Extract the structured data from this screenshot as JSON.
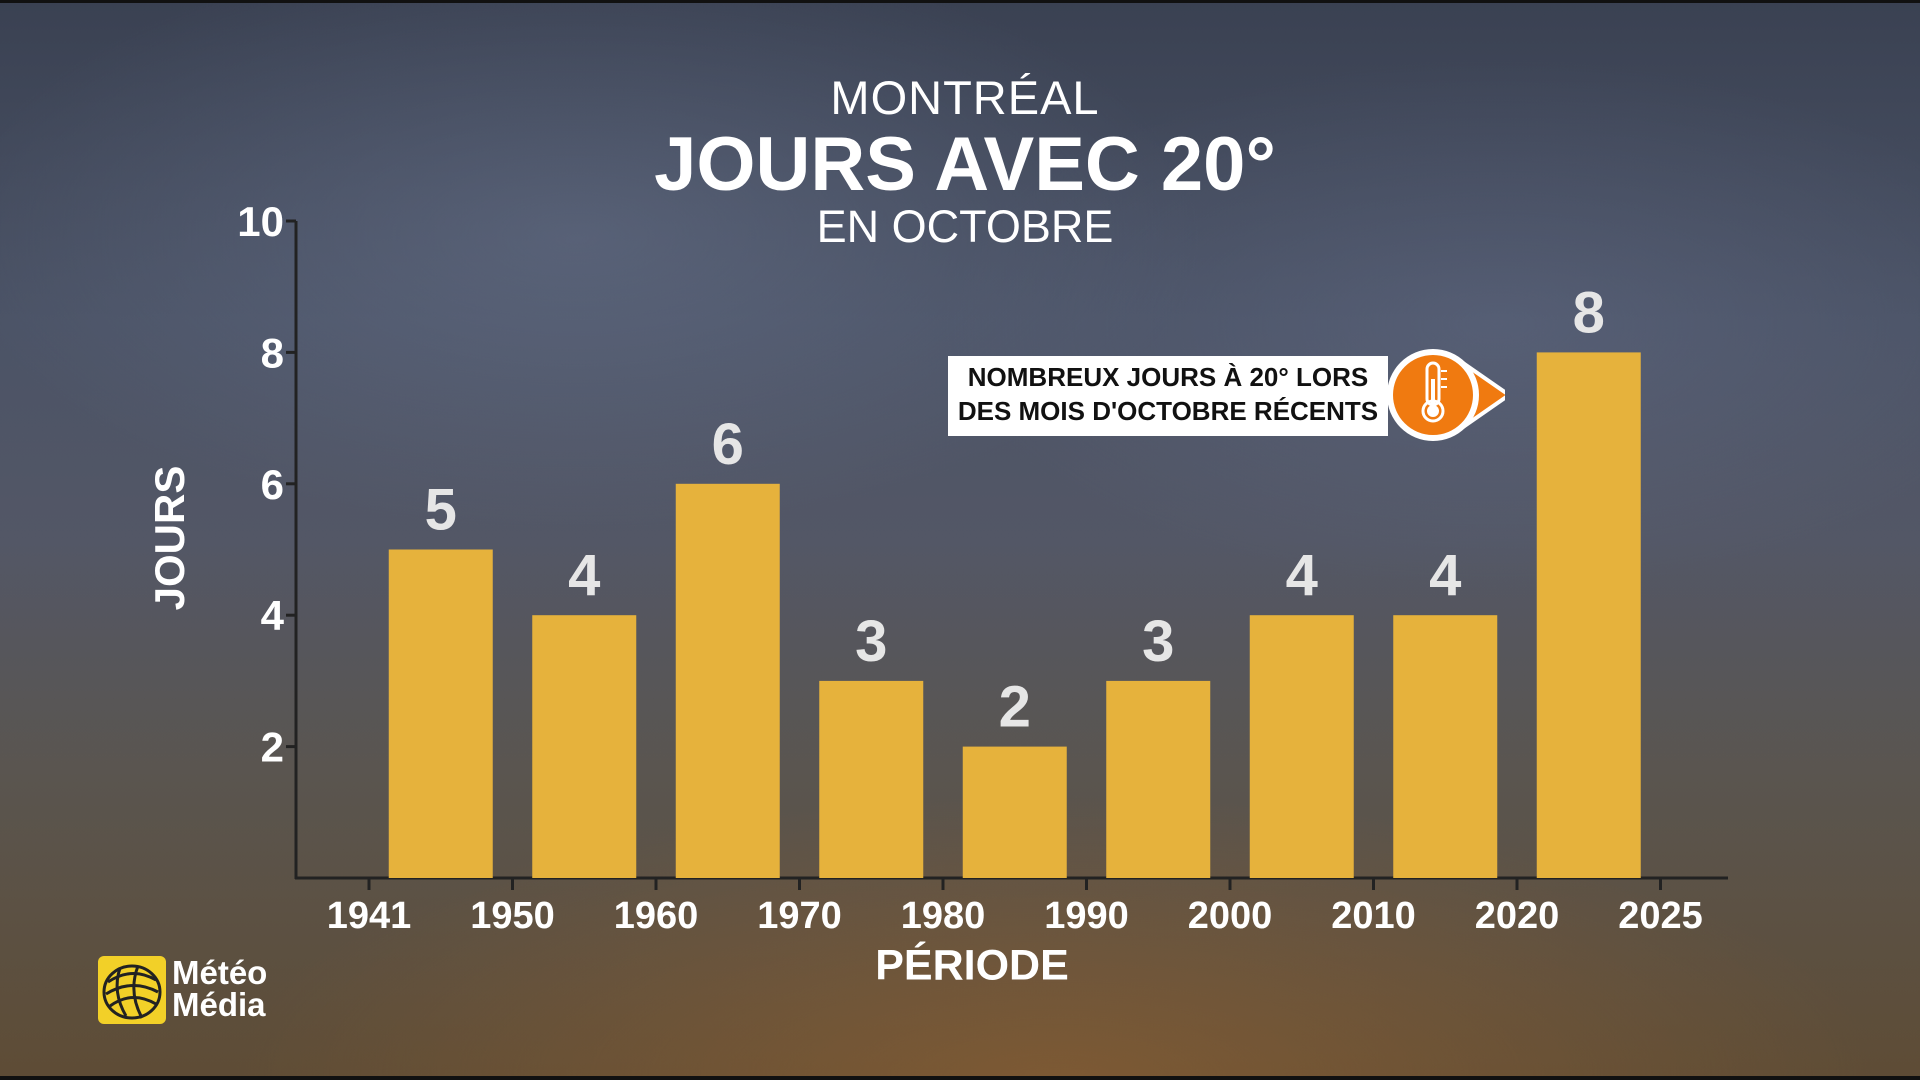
{
  "header": {
    "line1": "MONTRÉAL",
    "line2": "JOURS AVEC 20°",
    "line3": "EN OCTOBRE"
  },
  "callout": {
    "line1": "NOMBREUX JOURS À 20° LORS",
    "line2": "DES MOIS D'OCTOBRE RÉCENTS",
    "icon": "thermometer-icon",
    "color": "#f07a10"
  },
  "logo": {
    "line1": "Météo",
    "line2": "Média",
    "icon": "globe-icon",
    "color": "#f2d028"
  },
  "chart_data": {
    "type": "bar",
    "title": "JOURS AVEC 20°",
    "xlabel": "PÉRIODE",
    "ylabel": "JOURS",
    "x_ticks": [
      "1941",
      "1950",
      "1960",
      "1970",
      "1980",
      "1990",
      "2000",
      "2010",
      "2020",
      "2025"
    ],
    "bins": [
      {
        "start": "1941",
        "end": "1950",
        "value": 5
      },
      {
        "start": "1950",
        "end": "1960",
        "value": 4
      },
      {
        "start": "1960",
        "end": "1970",
        "value": 6
      },
      {
        "start": "1970",
        "end": "1980",
        "value": 3
      },
      {
        "start": "1980",
        "end": "1990",
        "value": 2
      },
      {
        "start": "1990",
        "end": "2000",
        "value": 3
      },
      {
        "start": "2000",
        "end": "2010",
        "value": 4
      },
      {
        "start": "2010",
        "end": "2020",
        "value": 4
      },
      {
        "start": "2020",
        "end": "2025",
        "value": 8
      }
    ],
    "y_ticks": [
      "2",
      "4",
      "6",
      "8",
      "10"
    ],
    "ylim": [
      0,
      10
    ],
    "grid": false,
    "bar_color": "#e6b23c"
  }
}
